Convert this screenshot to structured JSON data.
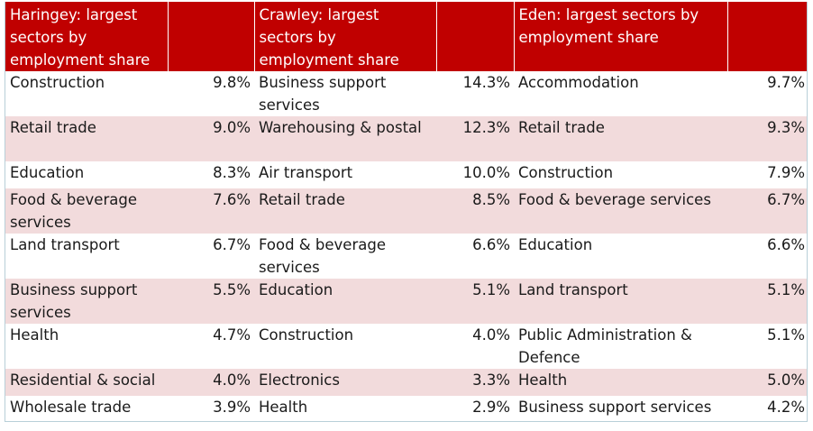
{
  "headers": [
    "Haringey: largest sectors by employment share",
    "Crawley: largest sectors by employment share",
    "Eden: largest sectors by employment share"
  ],
  "rows": [
    {
      "haringey_sector": "Construction",
      "haringey_share": "9.8%",
      "crawley_sector": "Business support services",
      "crawley_share": "14.3%",
      "eden_sector": "Accommodation",
      "eden_share": "9.7%"
    },
    {
      "haringey_sector": "Retail trade",
      "haringey_share": "9.0%",
      "crawley_sector": "Warehousing & postal",
      "crawley_share": "12.3%",
      "eden_sector": "Retail trade",
      "eden_share": "9.3%"
    },
    {
      "haringey_sector": "Education",
      "haringey_share": "8.3%",
      "crawley_sector": "Air transport",
      "crawley_share": "10.0%",
      "eden_sector": "Construction",
      "eden_share": "7.9%"
    },
    {
      "haringey_sector": "Food & beverage services",
      "haringey_share": "7.6%",
      "crawley_sector": "Retail trade",
      "crawley_share": "8.5%",
      "eden_sector": "Food & beverage services",
      "eden_share": "6.7%"
    },
    {
      "haringey_sector": "Land transport",
      "haringey_share": "6.7%",
      "crawley_sector": "Food & beverage services",
      "crawley_share": "6.6%",
      "eden_sector": "Education",
      "eden_share": "6.6%"
    },
    {
      "haringey_sector": "Business support services",
      "haringey_share": "5.5%",
      "crawley_sector": "Education",
      "crawley_share": "5.1%",
      "eden_sector": "Land transport",
      "eden_share": "5.1%"
    },
    {
      "haringey_sector": "Health",
      "haringey_share": "4.7%",
      "crawley_sector": "Construction",
      "crawley_share": "4.0%",
      "eden_sector": "Public Administration & Defence",
      "eden_share": "5.1%"
    },
    {
      "haringey_sector": "Residential & social",
      "haringey_share": "4.0%",
      "crawley_sector": "Electronics",
      "crawley_share": "3.3%",
      "eden_sector": "Health",
      "eden_share": "5.0%"
    },
    {
      "haringey_sector": "Wholesale trade",
      "haringey_share": "3.9%",
      "crawley_sector": "Health",
      "crawley_share": "2.9%",
      "eden_sector": "Business support services",
      "eden_share": "4.2%"
    }
  ],
  "colors": {
    "header_bg": "#c00000",
    "header_text": "#ffffff",
    "shaded_row": "#f2dbdc",
    "border": "#b8cfd8"
  }
}
